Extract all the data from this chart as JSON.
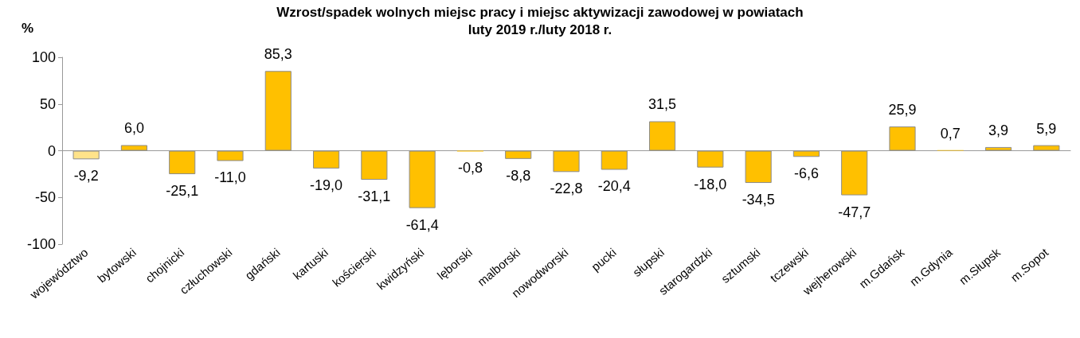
{
  "chart_data": {
    "type": "bar",
    "title": "Wzrost/spadek wolnych miejsc pracy i miejsc aktywizacji zawodowej w powiatach",
    "subtitle": "luty 2019 r./luty 2018 r.",
    "ylabel": "%",
    "categories": [
      "województwo",
      "bytowski",
      "chojnicki",
      "człuchowski",
      "gdański",
      "kartuski",
      "kościerski",
      "kwidzyński",
      "lęborski",
      "malborski",
      "nowodworski",
      "pucki",
      "słupski",
      "starogardzki",
      "sztumski",
      "tczewski",
      "wejherowski",
      "m.Gdańsk",
      "m.Gdynia",
      "m.Słupsk",
      "m.Sopot"
    ],
    "values": [
      -9.2,
      6.0,
      -25.1,
      -11.0,
      85.3,
      -19.0,
      -31.1,
      -61.4,
      -0.8,
      -8.8,
      -22.8,
      -20.4,
      31.5,
      -18.0,
      -34.5,
      -6.6,
      -47.7,
      25.9,
      0.7,
      3.9,
      5.9
    ],
    "value_labels": [
      "-9,2",
      "6,0",
      "-25,1",
      "-11,0",
      "85,3",
      "-19,0",
      "-31,1",
      "-61,4",
      "-0,8",
      "-8,8",
      "-22,8",
      "-20,4",
      "31,5",
      "-18,0",
      "-34,5",
      "-6,6",
      "-47,7",
      "25,9",
      "0,7",
      "3,9",
      "5,9"
    ],
    "colors": [
      "#ffe38a",
      "#ffc000",
      "#ffc000",
      "#ffc000",
      "#ffc000",
      "#ffc000",
      "#ffc000",
      "#ffc000",
      "#ffc000",
      "#ffc000",
      "#ffc000",
      "#ffc000",
      "#ffc000",
      "#ffc000",
      "#ffc000",
      "#ffc000",
      "#ffc000",
      "#ffc000",
      "#ffc000",
      "#ffc000",
      "#ffc000"
    ],
    "ylim": [
      -100,
      100
    ],
    "yticks": [
      -100,
      -50,
      0,
      50,
      100
    ]
  }
}
